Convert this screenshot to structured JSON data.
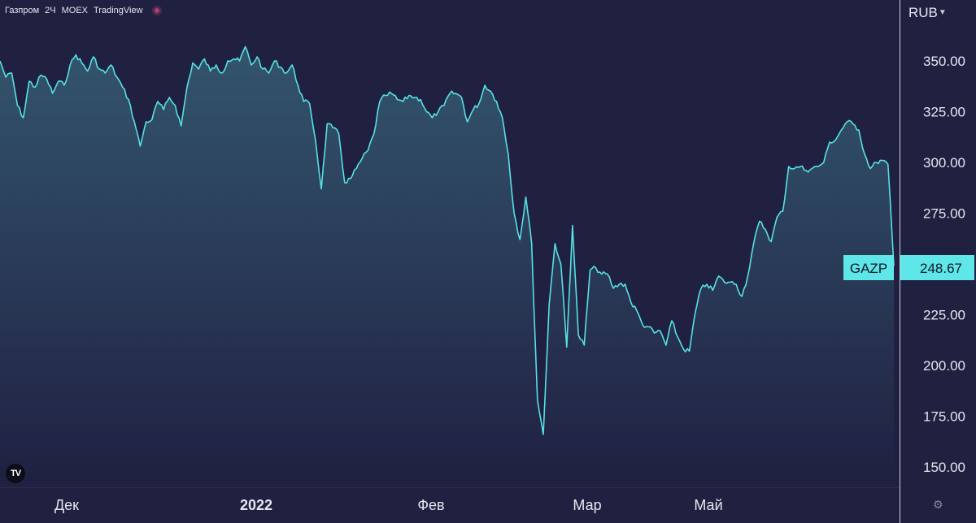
{
  "header": {
    "symbol": "Газпром",
    "interval": "2Ч",
    "exchange": "MOEX",
    "provider": "TradingView"
  },
  "currency": "RUB",
  "price_label": {
    "ticker": "GAZP",
    "value": "248.67"
  },
  "colors": {
    "background": "#202041",
    "line": "#56e1e4",
    "label_bg": "#5ee6e8",
    "axis_text": "#e6e6ef"
  },
  "chart_data": {
    "type": "area",
    "x_ticks": [
      "Дек",
      "2022",
      "Фев",
      "Мар",
      "Май"
    ],
    "y_ticks": [
      "350.00",
      "325.00",
      "300.00",
      "275.00",
      "225.00",
      "200.00",
      "175.00",
      "150.00"
    ],
    "ylim": [
      141,
      372
    ],
    "series": [
      {
        "values": [
          350,
          342,
          344,
          328,
          322,
          340,
          337,
          343,
          341,
          334,
          340,
          338,
          348,
          353,
          349,
          345,
          352,
          346,
          344,
          348,
          342,
          337,
          331,
          320,
          308,
          320,
          321,
          330,
          326,
          332,
          328,
          318,
          337,
          349,
          346,
          351,
          345,
          348,
          344,
          350,
          351,
          350,
          357,
          348,
          352,
          346,
          344,
          350,
          347,
          344,
          348,
          338,
          330,
          329,
          311,
          287,
          319,
          317,
          314,
          290,
          292,
          297,
          302,
          306,
          314,
          330,
          333,
          334,
          331,
          330,
          333,
          332,
          331,
          325,
          322,
          325,
          328,
          334,
          334,
          332,
          320,
          326,
          329,
          338,
          335,
          330,
          322,
          304,
          275,
          262,
          283,
          260,
          183,
          166,
          230,
          260,
          250,
          209,
          269,
          215,
          210,
          247,
          248,
          245,
          245,
          238,
          240,
          240,
          231,
          227,
          220,
          219,
          216,
          217,
          210,
          222,
          214,
          208,
          207,
          226,
          238,
          240,
          237,
          244,
          241,
          241,
          240,
          234,
          244,
          260,
          271,
          267,
          261,
          273,
          276,
          298,
          297,
          298,
          296,
          297,
          298,
          300,
          310,
          311,
          316,
          320,
          319,
          316,
          304,
          297,
          300,
          301,
          299,
          249
        ]
      }
    ]
  }
}
